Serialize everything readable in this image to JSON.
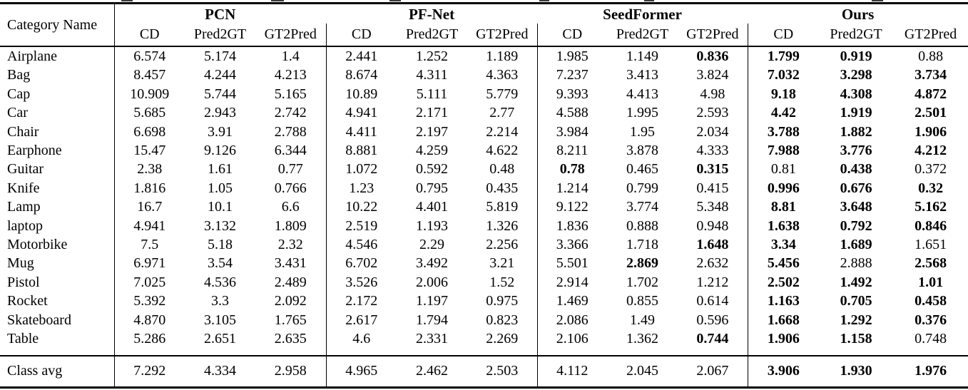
{
  "page": {
    "background": "#ffffff",
    "text_color": "#000000"
  },
  "table": {
    "category_header": "Category Name",
    "groups": [
      "PCN",
      "PF-Net",
      "SeedFormer",
      "Ours"
    ],
    "metrics": [
      "CD",
      "Pred2GT",
      "GT2Pred"
    ],
    "rows": [
      {
        "category": "Airplane",
        "values": [
          "6.574",
          "5.174",
          "1.4",
          "2.441",
          "1.252",
          "1.189",
          "1.985",
          "1.149",
          "0.836",
          "1.799",
          "0.919",
          "0.88"
        ],
        "bold": [
          0,
          0,
          0,
          0,
          0,
          0,
          0,
          0,
          1,
          1,
          1,
          0
        ]
      },
      {
        "category": "Bag",
        "values": [
          "8.457",
          "4.244",
          "4.213",
          "8.674",
          "4.311",
          "4.363",
          "7.237",
          "3.413",
          "3.824",
          "7.032",
          "3.298",
          "3.734"
        ],
        "bold": [
          0,
          0,
          0,
          0,
          0,
          0,
          0,
          0,
          0,
          1,
          1,
          1
        ]
      },
      {
        "category": "Cap",
        "values": [
          "10.909",
          "5.744",
          "5.165",
          "10.89",
          "5.111",
          "5.779",
          "9.393",
          "4.413",
          "4.98",
          "9.18",
          "4.308",
          "4.872"
        ],
        "bold": [
          0,
          0,
          0,
          0,
          0,
          0,
          0,
          0,
          0,
          1,
          1,
          1
        ]
      },
      {
        "category": "Car",
        "values": [
          "5.685",
          "2.943",
          "2.742",
          "4.941",
          "2.171",
          "2.77",
          "4.588",
          "1.995",
          "2.593",
          "4.42",
          "1.919",
          "2.501"
        ],
        "bold": [
          0,
          0,
          0,
          0,
          0,
          0,
          0,
          0,
          0,
          1,
          1,
          1
        ]
      },
      {
        "category": "Chair",
        "values": [
          "6.698",
          "3.91",
          "2.788",
          "4.411",
          "2.197",
          "2.214",
          "3.984",
          "1.95",
          "2.034",
          "3.788",
          "1.882",
          "1.906"
        ],
        "bold": [
          0,
          0,
          0,
          0,
          0,
          0,
          0,
          0,
          0,
          1,
          1,
          1
        ]
      },
      {
        "category": "Earphone",
        "values": [
          "15.47",
          "9.126",
          "6.344",
          "8.881",
          "4.259",
          "4.622",
          "8.211",
          "3.878",
          "4.333",
          "7.988",
          "3.776",
          "4.212"
        ],
        "bold": [
          0,
          0,
          0,
          0,
          0,
          0,
          0,
          0,
          0,
          1,
          1,
          1
        ]
      },
      {
        "category": "Guitar",
        "values": [
          "2.38",
          "1.61",
          "0.77",
          "1.072",
          "0.592",
          "0.48",
          "0.78",
          "0.465",
          "0.315",
          "0.81",
          "0.438",
          "0.372"
        ],
        "bold": [
          0,
          0,
          0,
          0,
          0,
          0,
          1,
          0,
          1,
          0,
          1,
          0
        ]
      },
      {
        "category": "Knife",
        "values": [
          "1.816",
          "1.05",
          "0.766",
          "1.23",
          "0.795",
          "0.435",
          "1.214",
          "0.799",
          "0.415",
          "0.996",
          "0.676",
          "0.32"
        ],
        "bold": [
          0,
          0,
          0,
          0,
          0,
          0,
          0,
          0,
          0,
          1,
          1,
          1
        ]
      },
      {
        "category": "Lamp",
        "values": [
          "16.7",
          "10.1",
          "6.6",
          "10.22",
          "4.401",
          "5.819",
          "9.122",
          "3.774",
          "5.348",
          "8.81",
          "3.648",
          "5.162"
        ],
        "bold": [
          0,
          0,
          0,
          0,
          0,
          0,
          0,
          0,
          0,
          1,
          1,
          1
        ]
      },
      {
        "category": "laptop",
        "values": [
          "4.941",
          "3.132",
          "1.809",
          "2.519",
          "1.193",
          "1.326",
          "1.836",
          "0.888",
          "0.948",
          "1.638",
          "0.792",
          "0.846"
        ],
        "bold": [
          0,
          0,
          0,
          0,
          0,
          0,
          0,
          0,
          0,
          1,
          1,
          1
        ]
      },
      {
        "category": "Motorbike",
        "values": [
          "7.5",
          "5.18",
          "2.32",
          "4.546",
          "2.29",
          "2.256",
          "3.366",
          "1.718",
          "1.648",
          "3.34",
          "1.689",
          "1.651"
        ],
        "bold": [
          0,
          0,
          0,
          0,
          0,
          0,
          0,
          0,
          1,
          1,
          1,
          0
        ]
      },
      {
        "category": "Mug",
        "values": [
          "6.971",
          "3.54",
          "3.431",
          "6.702",
          "3.492",
          "3.21",
          "5.501",
          "2.869",
          "2.632",
          "5.456",
          "2.888",
          "2.568"
        ],
        "bold": [
          0,
          0,
          0,
          0,
          0,
          0,
          0,
          1,
          0,
          1,
          0,
          1
        ]
      },
      {
        "category": "Pistol",
        "values": [
          "7.025",
          "4.536",
          "2.489",
          "3.526",
          "2.006",
          "1.52",
          "2.914",
          "1.702",
          "1.212",
          "2.502",
          "1.492",
          "1.01"
        ],
        "bold": [
          0,
          0,
          0,
          0,
          0,
          0,
          0,
          0,
          0,
          1,
          1,
          1
        ]
      },
      {
        "category": "Rocket",
        "values": [
          "5.392",
          "3.3",
          "2.092",
          "2.172",
          "1.197",
          "0.975",
          "1.469",
          "0.855",
          "0.614",
          "1.163",
          "0.705",
          "0.458"
        ],
        "bold": [
          0,
          0,
          0,
          0,
          0,
          0,
          0,
          0,
          0,
          1,
          1,
          1
        ]
      },
      {
        "category": "Skateboard",
        "values": [
          "4.870",
          "3.105",
          "1.765",
          "2.617",
          "1.794",
          "0.823",
          "2.086",
          "1.49",
          "0.596",
          "1.668",
          "1.292",
          "0.376"
        ],
        "bold": [
          0,
          0,
          0,
          0,
          0,
          0,
          0,
          0,
          0,
          1,
          1,
          1
        ]
      },
      {
        "category": "Table",
        "values": [
          "5.286",
          "2.651",
          "2.635",
          "4.6",
          "2.331",
          "2.269",
          "2.106",
          "1.362",
          "0.744",
          "1.906",
          "1.158",
          "0.748"
        ],
        "bold": [
          0,
          0,
          0,
          0,
          0,
          0,
          0,
          0,
          1,
          1,
          1,
          0
        ]
      }
    ],
    "footer": {
      "category": "Class avg",
      "values": [
        "7.292",
        "4.334",
        "2.958",
        "4.965",
        "2.462",
        "2.503",
        "4.112",
        "2.045",
        "2.067",
        "3.906",
        "1.930",
        "1.976"
      ],
      "bold": [
        0,
        0,
        0,
        0,
        0,
        0,
        0,
        0,
        0,
        1,
        1,
        1
      ]
    }
  }
}
